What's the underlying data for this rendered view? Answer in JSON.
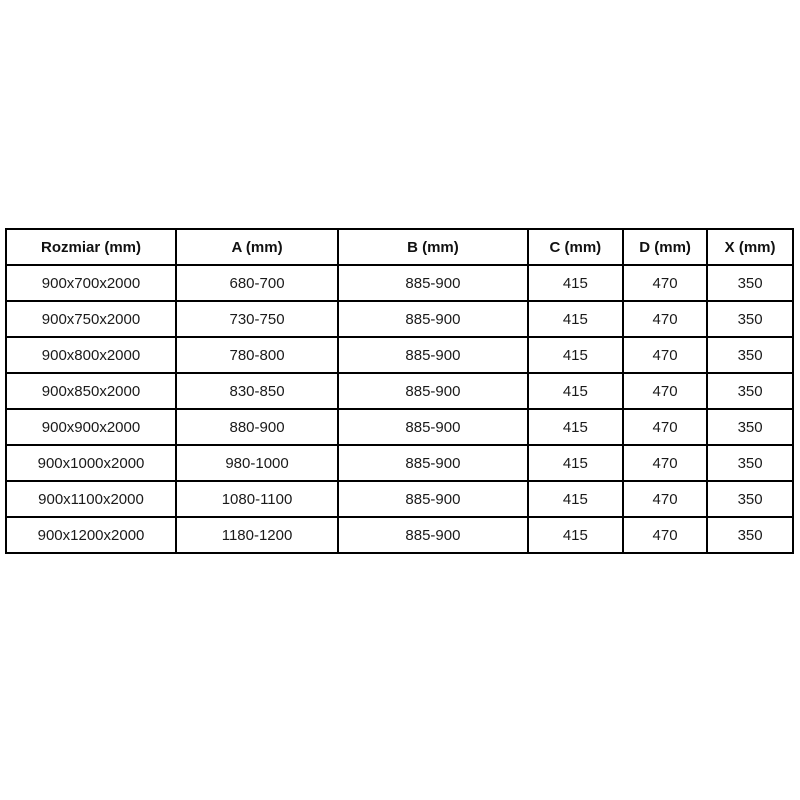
{
  "table": {
    "headers": [
      "Rozmiar (mm)",
      "A (mm)",
      "B (mm)",
      "C (mm)",
      "D (mm)",
      "X (mm)"
    ],
    "rows": [
      [
        "900x700x2000",
        "680-700",
        "885-900",
        "415",
        "470",
        "350"
      ],
      [
        "900x750x2000",
        "730-750",
        "885-900",
        "415",
        "470",
        "350"
      ],
      [
        "900x800x2000",
        "780-800",
        "885-900",
        "415",
        "470",
        "350"
      ],
      [
        "900x850x2000",
        "830-850",
        "885-900",
        "415",
        "470",
        "350"
      ],
      [
        "900x900x2000",
        "880-900",
        "885-900",
        "415",
        "470",
        "350"
      ],
      [
        "900x1000x2000",
        "980-1000",
        "885-900",
        "415",
        "470",
        "350"
      ],
      [
        "900x1100x2000",
        "1080-1100",
        "885-900",
        "415",
        "470",
        "350"
      ],
      [
        "900x1200x2000",
        "1180-1200",
        "885-900",
        "415",
        "470",
        "350"
      ]
    ]
  },
  "colors": {
    "border": "#000000",
    "text": "#1a1a1a",
    "background": "#ffffff"
  }
}
